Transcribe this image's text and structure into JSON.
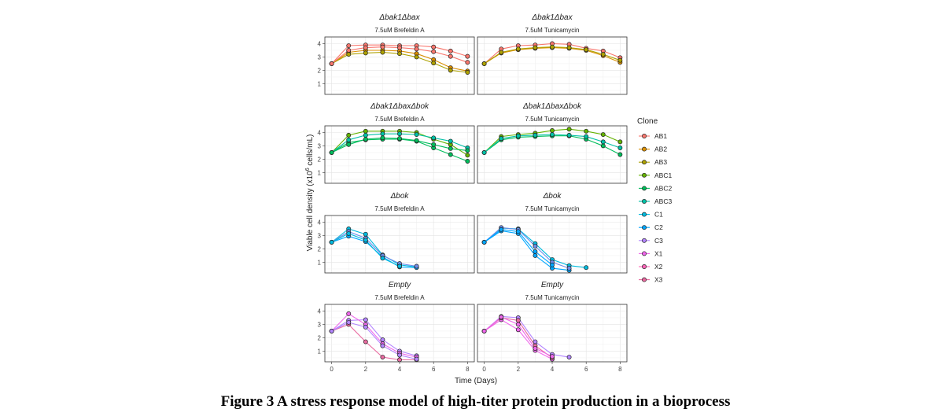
{
  "figure": {
    "caption": "Figure 3 A stress response model of high-titer protein production in a bioprocess"
  },
  "chart_data": {
    "type": "line",
    "xlabel": "Time (Days)",
    "ylabel": "Viable cell density (x10",
    "ylabel_sup": "6",
    "ylabel_tail": " cells/mL)",
    "xlim": [
      -0.4,
      8.4
    ],
    "ylim": [
      0.2,
      4.5
    ],
    "xticks": [
      0,
      2,
      4,
      6,
      8
    ],
    "yticks": [
      1,
      2,
      3,
      4
    ],
    "grid": true,
    "legend_position": "right",
    "legend": {
      "title": "Clone",
      "entries": [
        {
          "label": "AB1",
          "color": "#F8766D"
        },
        {
          "label": "AB2",
          "color": "#DB8E00"
        },
        {
          "label": "AB3",
          "color": "#AEA200"
        },
        {
          "label": "ABC1",
          "color": "#64B200"
        },
        {
          "label": "ABC2",
          "color": "#00BD5C"
        },
        {
          "label": "ABC3",
          "color": "#00C1A7"
        },
        {
          "label": "C1",
          "color": "#00BADE"
        },
        {
          "label": "C2",
          "color": "#00A6FF"
        },
        {
          "label": "C3",
          "color": "#B385FF"
        },
        {
          "label": "X1",
          "color": "#EF67EB"
        },
        {
          "label": "X2",
          "color": "#FF63B6"
        },
        {
          "label": "X3",
          "color": "#E96AA0"
        }
      ]
    },
    "panels": [
      {
        "title": "Δbak1Δbax",
        "subtitle": "7.5uM Brefeldin A",
        "series": [
          {
            "name": "AB1",
            "color": "#F8766D",
            "x": [
              0,
              1,
              2,
              3,
              4,
              5,
              6,
              7,
              8
            ],
            "y": [
              2.5,
              3.85,
              3.9,
              3.9,
              3.85,
              3.85,
              3.75,
              3.45,
              3.05
            ]
          },
          {
            "name": "AB2",
            "color": "#DB8E00",
            "x": [
              0,
              1,
              2,
              3,
              4,
              5,
              6,
              7,
              8
            ],
            "y": [
              2.5,
              3.35,
              3.5,
              3.5,
              3.45,
              3.25,
              2.8,
              2.2,
              1.95
            ]
          },
          {
            "name": "AB3",
            "color": "#AEA200",
            "x": [
              0,
              1,
              2,
              3,
              4,
              5,
              6,
              7,
              8
            ],
            "y": [
              2.5,
              3.2,
              3.3,
              3.35,
              3.25,
              3.0,
              2.55,
              2.0,
              1.85
            ]
          },
          {
            "name": "AB1",
            "color": "#F8766D",
            "x": [
              0,
              1,
              2,
              3,
              4,
              5,
              6,
              7,
              8
            ],
            "y": [
              2.5,
              3.5,
              3.7,
              3.75,
              3.7,
              3.6,
              3.4,
              3.05,
              2.6
            ]
          }
        ]
      },
      {
        "title": "Δbak1Δbax",
        "subtitle": "7.5uM Tunicamycin",
        "series": [
          {
            "name": "AB1",
            "color": "#F8766D",
            "x": [
              0,
              1,
              2,
              3,
              4,
              5,
              6,
              7,
              8
            ],
            "y": [
              2.5,
              3.6,
              3.85,
              3.9,
              4.0,
              3.95,
              3.65,
              3.45,
              2.95
            ]
          },
          {
            "name": "AB2",
            "color": "#DB8E00",
            "x": [
              0,
              1,
              2,
              3,
              4,
              5,
              6,
              7,
              8
            ],
            "y": [
              2.5,
              3.3,
              3.55,
              3.65,
              3.7,
              3.65,
              3.5,
              3.1,
              2.6
            ]
          },
          {
            "name": "AB3",
            "color": "#AEA200",
            "x": [
              0,
              1,
              2,
              3,
              4,
              5,
              6,
              7,
              8
            ],
            "y": [
              2.5,
              3.35,
              3.6,
              3.7,
              3.75,
              3.7,
              3.55,
              3.2,
              2.75
            ]
          }
        ]
      },
      {
        "title": "Δbak1ΔbaxΔbok",
        "subtitle": "7.5uM Brefeldin A",
        "series": [
          {
            "name": "ABC1",
            "color": "#64B200",
            "x": [
              0,
              1,
              2,
              3,
              4,
              5,
              6,
              7,
              8
            ],
            "y": [
              2.5,
              3.8,
              4.1,
              4.1,
              4.1,
              4.0,
              3.5,
              3.1,
              2.3
            ]
          },
          {
            "name": "ABC2",
            "color": "#00BD5C",
            "x": [
              0,
              1,
              2,
              3,
              4,
              5,
              6,
              7,
              8
            ],
            "y": [
              2.5,
              3.25,
              3.45,
              3.5,
              3.5,
              3.35,
              2.85,
              2.35,
              1.85
            ]
          },
          {
            "name": "ABC3",
            "color": "#00C1A7",
            "x": [
              0,
              1,
              2,
              3,
              4,
              5,
              6,
              7,
              8
            ],
            "y": [
              2.5,
              3.45,
              3.8,
              3.9,
              3.9,
              3.85,
              3.6,
              3.35,
              2.85
            ]
          },
          {
            "name": "ABC2",
            "color": "#00BD5C",
            "x": [
              0,
              1,
              2,
              3,
              4,
              5,
              6,
              7,
              8
            ],
            "y": [
              2.5,
              3.1,
              3.5,
              3.6,
              3.55,
              3.4,
              3.1,
              2.8,
              2.65
            ]
          }
        ]
      },
      {
        "title": "Δbak1ΔbaxΔbok",
        "subtitle": "7.5uM Tunicamycin",
        "series": [
          {
            "name": "ABC1",
            "color": "#64B200",
            "x": [
              0,
              1,
              2,
              3,
              4,
              5,
              6,
              7,
              8
            ],
            "y": [
              2.5,
              3.7,
              3.85,
              3.95,
              4.15,
              4.25,
              4.1,
              3.85,
              3.3
            ]
          },
          {
            "name": "ABC2",
            "color": "#00BD5C",
            "x": [
              0,
              1,
              2,
              3,
              4,
              5,
              6,
              7,
              8
            ],
            "y": [
              2.5,
              3.45,
              3.65,
              3.7,
              3.75,
              3.75,
              3.5,
              3.0,
              2.35
            ]
          },
          {
            "name": "ABC3",
            "color": "#00C1A7",
            "x": [
              0,
              1,
              2,
              3,
              4,
              5,
              6,
              7,
              8
            ],
            "y": [
              2.5,
              3.55,
              3.75,
              3.8,
              3.85,
              3.8,
              3.7,
              3.3,
              2.85
            ]
          }
        ]
      },
      {
        "title": "Δbok",
        "subtitle": "7.5uM Brefeldin A",
        "series": [
          {
            "name": "C1",
            "color": "#00BADE",
            "x": [
              0,
              1,
              2,
              3,
              4,
              5
            ],
            "y": [
              2.5,
              3.5,
              3.1,
              1.55,
              0.8,
              0.65
            ]
          },
          {
            "name": "C2",
            "color": "#00A6FF",
            "x": [
              0,
              1,
              2,
              3,
              4,
              5
            ],
            "y": [
              2.5,
              2.95,
              2.55,
              1.4,
              0.65,
              0.6
            ]
          },
          {
            "name": "C3",
            "color": "#6E8CE8",
            "x": [
              0,
              1,
              2,
              3,
              4,
              5
            ],
            "y": [
              2.5,
              3.3,
              2.8,
              1.5,
              0.9,
              0.7
            ]
          },
          {
            "name": "C1",
            "color": "#00BADE",
            "x": [
              0,
              1,
              2,
              3,
              4
            ],
            "y": [
              2.5,
              3.15,
              2.65,
              1.3,
              0.7
            ]
          }
        ]
      },
      {
        "title": "Δbok",
        "subtitle": "7.5uM Tunicamycin",
        "series": [
          {
            "name": "C1",
            "color": "#00BADE",
            "x": [
              0,
              1,
              2,
              3,
              4,
              5,
              6
            ],
            "y": [
              2.5,
              3.55,
              3.5,
              2.4,
              1.2,
              0.75,
              0.6
            ]
          },
          {
            "name": "C2",
            "color": "#00A6FF",
            "x": [
              0,
              1,
              2,
              3,
              4,
              5
            ],
            "y": [
              2.5,
              3.35,
              3.15,
              1.5,
              0.55,
              0.4
            ]
          },
          {
            "name": "C3",
            "color": "#6E8CE8",
            "x": [
              0,
              1,
              2,
              3,
              4,
              5
            ],
            "y": [
              2.5,
              3.6,
              3.45,
              2.2,
              1.0,
              0.55
            ]
          },
          {
            "name": "C2",
            "color": "#00A6FF",
            "x": [
              0,
              1,
              2,
              3,
              4
            ],
            "y": [
              2.5,
              3.45,
              3.3,
              1.8,
              0.8
            ]
          }
        ]
      },
      {
        "title": "Empty",
        "subtitle": "7.5uM Brefeldin A",
        "series": [
          {
            "name": "X1",
            "color": "#B385FF",
            "x": [
              0,
              1,
              2,
              3,
              4,
              5
            ],
            "y": [
              2.5,
              3.3,
              3.35,
              1.85,
              1.0,
              0.65
            ]
          },
          {
            "name": "X2",
            "color": "#EF67EB",
            "x": [
              0,
              1,
              2,
              3,
              4,
              5
            ],
            "y": [
              2.5,
              3.8,
              3.0,
              1.55,
              0.85,
              0.55
            ]
          },
          {
            "name": "X3",
            "color": "#E96AA0",
            "x": [
              0,
              1,
              2,
              3,
              4,
              5
            ],
            "y": [
              2.5,
              3.0,
              1.7,
              0.55,
              0.35,
              0.35
            ]
          },
          {
            "name": "X1",
            "color": "#B385FF",
            "x": [
              0,
              1,
              2,
              3,
              4,
              5
            ],
            "y": [
              2.5,
              3.15,
              2.8,
              1.4,
              0.7,
              0.4
            ]
          }
        ]
      },
      {
        "title": "Empty",
        "subtitle": "7.5uM Tunicamycin",
        "series": [
          {
            "name": "X1",
            "color": "#B385FF",
            "x": [
              0,
              1,
              2,
              3,
              4,
              5
            ],
            "y": [
              2.5,
              3.6,
              3.5,
              1.7,
              0.75,
              0.55
            ]
          },
          {
            "name": "X2",
            "color": "#EF67EB",
            "x": [
              0,
              1,
              2,
              3,
              4
            ],
            "y": [
              2.5,
              3.35,
              2.6,
              1.05,
              0.4
            ]
          },
          {
            "name": "X3",
            "color": "#E96AA0",
            "x": [
              0,
              1,
              2,
              3,
              4
            ],
            "y": [
              2.5,
              3.5,
              3.3,
              1.4,
              0.5
            ]
          },
          {
            "name": "X2",
            "color": "#EF67EB",
            "x": [
              0,
              1,
              2,
              3,
              4
            ],
            "y": [
              2.5,
              3.55,
              3.0,
              1.2,
              0.6
            ]
          }
        ]
      }
    ]
  }
}
